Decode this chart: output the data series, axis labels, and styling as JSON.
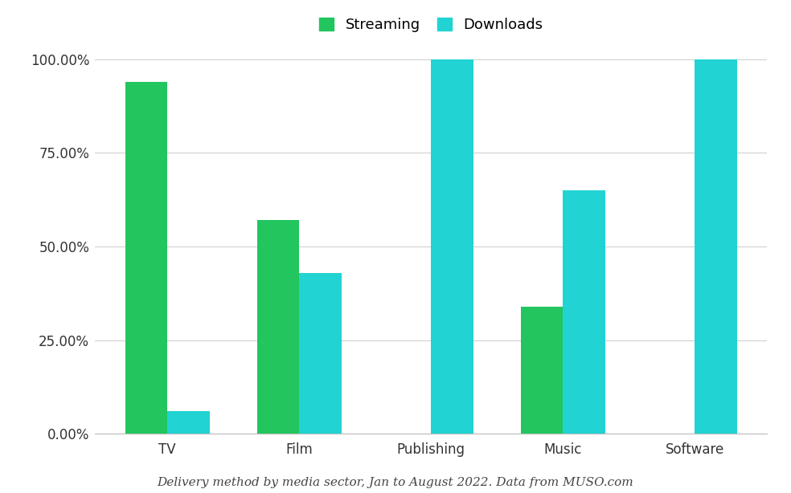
{
  "categories": [
    "TV",
    "Film",
    "Publishing",
    "Music",
    "Software"
  ],
  "streaming": [
    94.0,
    57.0,
    0.0,
    34.0,
    0.0
  ],
  "downloads": [
    6.0,
    43.0,
    100.0,
    65.0,
    100.0
  ],
  "streaming_color": "#22c55e",
  "downloads_color": "#22d3d3",
  "background_color": "#ffffff",
  "yticks": [
    0,
    25,
    50,
    75,
    100
  ],
  "ytick_labels": [
    "0.00%",
    "25.00%",
    "50.00%",
    "75.00%",
    "100.00%"
  ],
  "legend_labels": [
    "Streaming",
    "Downloads"
  ],
  "caption": "Delivery method by media sector, Jan to August 2022. Data from MUSO.com",
  "bar_width": 0.32,
  "grid_color": "#d0d0d0",
  "tick_fontsize": 12,
  "xtick_fontsize": 12,
  "legend_fontsize": 13
}
